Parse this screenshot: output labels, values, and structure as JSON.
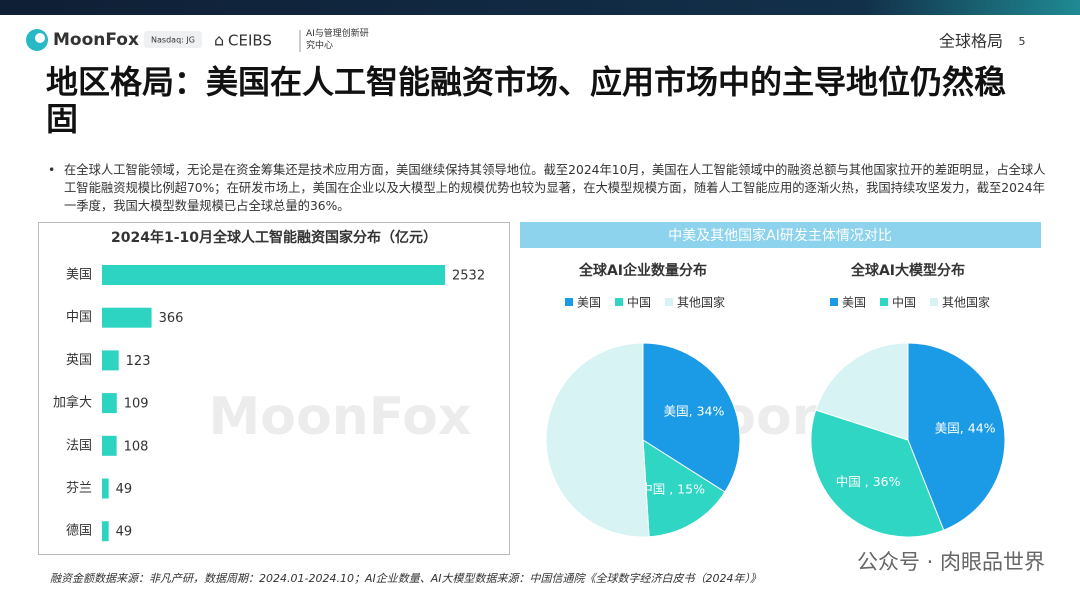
{
  "header": {
    "brand": "MoonFox",
    "exchange": "Nasdaq: JG",
    "partner": "CEIBS",
    "partner_unit": "AI与管理创新研究中心",
    "section": "全球格局",
    "page": "5"
  },
  "title": "地区格局：美国在人工智能融资市场、应用市场中的主导地位仍然稳固",
  "bullet": "在全球人工智能领域，无论是在资金筹集还是技术应用方面，美国继续保持其领导地位。截至2024年10月，美国在人工智能领域中的融资总额与其他国家拉开的差距明显，占全球人工智能融资规模比例超70%；在研发市场上，美国在企业以及大模型上的规模优势也较为显著，在大模型规模方面，随着人工智能应用的逐渐火热，我国持续攻坚发力，截至2024年一季度，我国大模型数量规模已占全球总量的36%。",
  "panel_title": "中美及其他国家AI研发主体情况对比",
  "source": "融资金额数据来源：非凡产研，数据周期：2024.01-2024.10；AI企业数量、AI大模型数据来源：中国信通院《全球数字经济白皮书（2024年）》",
  "watermark": "MoonFox",
  "wechat": "公众号 · 肉眼品世界",
  "chart_data": [
    {
      "type": "bar",
      "orientation": "horizontal",
      "title": "2024年1-10月全球人工智能融资国家分布（亿元）",
      "categories": [
        "美国",
        "中国",
        "英国",
        "加拿大",
        "法国",
        "芬兰",
        "德国"
      ],
      "values": [
        2532,
        366,
        123,
        109,
        108,
        49,
        49
      ],
      "color": "#2dd4c2"
    },
    {
      "type": "pie",
      "title": "全球AI企业数量分布",
      "categories": [
        "美国",
        "中国",
        "其他国家"
      ],
      "values": [
        34,
        15,
        51
      ],
      "value_labels": [
        "美国, 34%",
        "中国 , 15%",
        null
      ],
      "colors": [
        "#1b9ae6",
        "#2fd6c3",
        "#d7f3f3"
      ]
    },
    {
      "type": "pie",
      "title": "全球AI大模型分布",
      "categories": [
        "美国",
        "中国",
        "其他国家"
      ],
      "values": [
        44,
        36,
        20
      ],
      "value_labels": [
        "美国, 44%",
        "中国 , 36%",
        null
      ],
      "colors": [
        "#1b9ae6",
        "#2fd6c3",
        "#d7f3f3"
      ]
    }
  ]
}
